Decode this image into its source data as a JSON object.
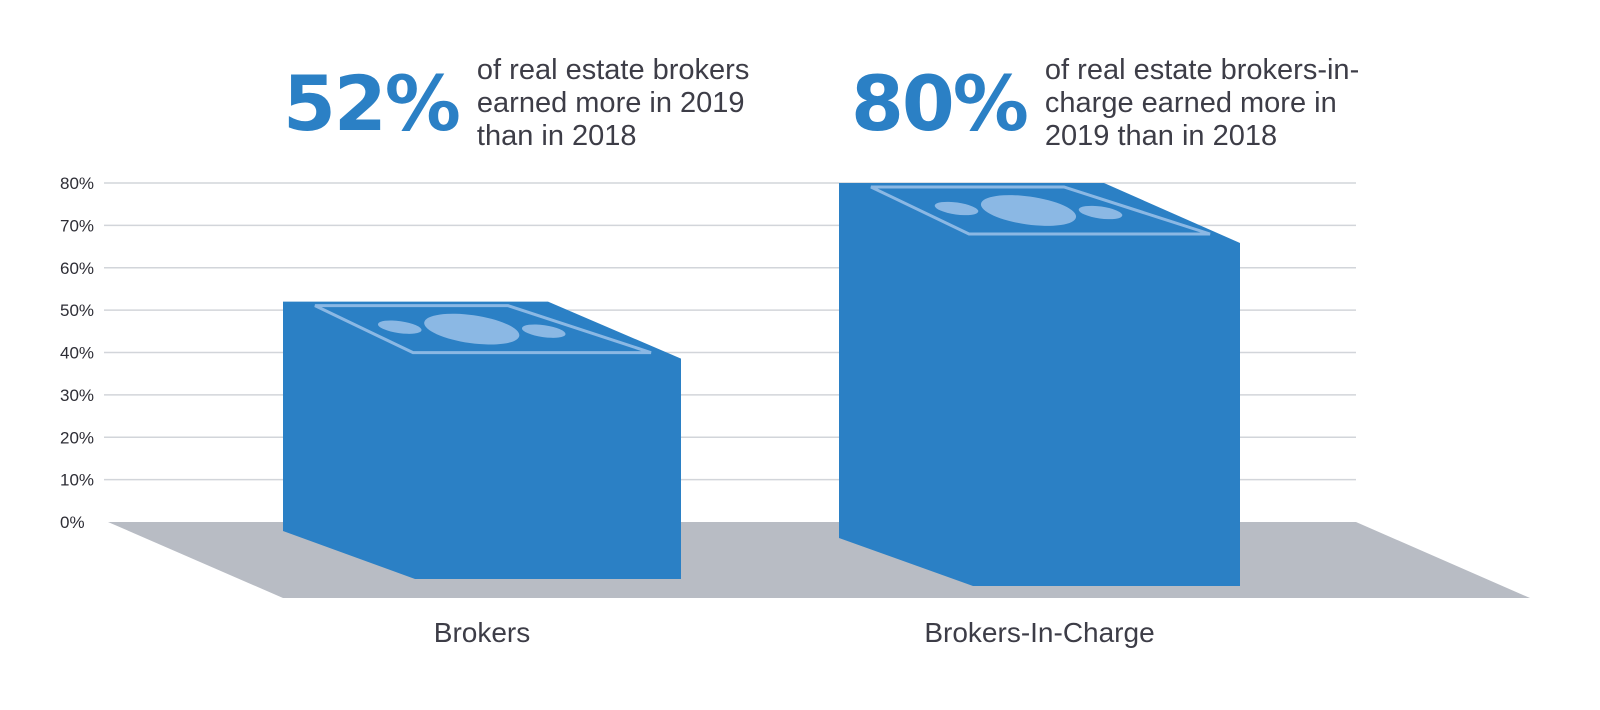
{
  "callouts": [
    {
      "value": "52%",
      "text": "of real estate brokers earned more in 2019 than in 2018"
    },
    {
      "value": "80%",
      "text": "of real estate brokers-in-charge earned more in 2019 than in 2018"
    }
  ],
  "colors": {
    "bar": "#2b80c5",
    "bill_highlight": "#8bb8e4",
    "floor": "#b8bcc4",
    "grid": "#d2d5da",
    "accent_text": "#2b80c5",
    "body_text": "#3d3d47"
  },
  "icons": {
    "bar_top": "dollar-bill-icon"
  },
  "chart_data": {
    "type": "bar",
    "style": "3d-money-stack",
    "categories": [
      "Brokers",
      "Brokers-In-Charge"
    ],
    "values": [
      52,
      80
    ],
    "y_ticks": [
      "0%",
      "10%",
      "20%",
      "30%",
      "40%",
      "50%",
      "60%",
      "70%",
      "80%"
    ],
    "ylim": [
      0,
      80
    ],
    "grid": true,
    "legend": "none",
    "title": "",
    "xlabel": "",
    "ylabel": ""
  }
}
